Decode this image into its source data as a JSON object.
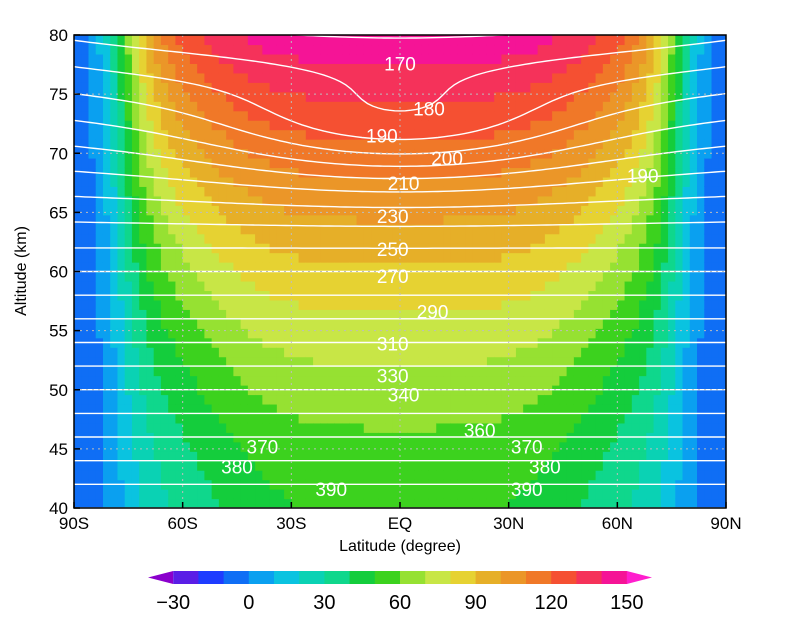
{
  "chart_data": {
    "type": "heatmap",
    "xlabel": "Latitude (degree)",
    "ylabel": "Altitude (km)",
    "xlim": [
      -90,
      90
    ],
    "ylim": [
      40,
      80
    ],
    "x_ticks": [
      {
        "value": -90,
        "label": "90S"
      },
      {
        "value": -60,
        "label": "60S"
      },
      {
        "value": -30,
        "label": "30S"
      },
      {
        "value": 0,
        "label": "EQ"
      },
      {
        "value": 30,
        "label": "30N"
      },
      {
        "value": 60,
        "label": "60N"
      },
      {
        "value": 90,
        "label": "90N"
      }
    ],
    "y_ticks": [
      {
        "value": 40,
        "label": "40"
      },
      {
        "value": 45,
        "label": "45"
      },
      {
        "value": 50,
        "label": "50"
      },
      {
        "value": 55,
        "label": "55"
      },
      {
        "value": 60,
        "label": "60"
      },
      {
        "value": 65,
        "label": "65"
      },
      {
        "value": 70,
        "label": "70"
      },
      {
        "value": 75,
        "label": "75"
      },
      {
        "value": 80,
        "label": "80"
      }
    ],
    "grid": true,
    "colorbar": {
      "levels": [
        -40,
        -30,
        -20,
        -10,
        0,
        10,
        20,
        30,
        40,
        50,
        60,
        70,
        80,
        90,
        100,
        110,
        120,
        130,
        140,
        150,
        160
      ],
      "colors": [
        "#8a00cc",
        "#5a1ee6",
        "#1e3cff",
        "#0f6ef5",
        "#0aa0f0",
        "#0ac3e0",
        "#0ad2b4",
        "#0fd78c",
        "#14cd3c",
        "#3cd21e",
        "#96e132",
        "#c8e646",
        "#e6d232",
        "#e6af28",
        "#eb9628",
        "#f07828",
        "#f55032",
        "#f5325a",
        "#f51496",
        "#ff1ecd"
      ],
      "tick_labels": [
        {
          "value": -30,
          "label": "−30"
        },
        {
          "value": 0,
          "label": "0"
        },
        {
          "value": 30,
          "label": "30"
        },
        {
          "value": 60,
          "label": "60"
        },
        {
          "value": 90,
          "label": "90"
        },
        {
          "value": 120,
          "label": "120"
        },
        {
          "value": 150,
          "label": "150"
        }
      ]
    },
    "contour_labels": [
      {
        "text": "170",
        "lat": 0,
        "alt": 77.6
      },
      {
        "text": "180",
        "lat": 8,
        "alt": 73.8
      },
      {
        "text": "190",
        "lat": -5,
        "alt": 71.5
      },
      {
        "text": "200",
        "lat": 13,
        "alt": 69.6
      },
      {
        "text": "190",
        "lat": 67,
        "alt": 68.1
      },
      {
        "text": "210",
        "lat": 1,
        "alt": 67.5
      },
      {
        "text": "230",
        "lat": -2,
        "alt": 64.7
      },
      {
        "text": "250",
        "lat": -2,
        "alt": 61.9
      },
      {
        "text": "270",
        "lat": -2,
        "alt": 59.6
      },
      {
        "text": "290",
        "lat": 9,
        "alt": 56.6
      },
      {
        "text": "310",
        "lat": -2,
        "alt": 53.9
      },
      {
        "text": "330",
        "lat": -2,
        "alt": 51.2
      },
      {
        "text": "340",
        "lat": 1,
        "alt": 49.6
      },
      {
        "text": "360",
        "lat": 22,
        "alt": 46.6
      },
      {
        "text": "370",
        "lat": -38,
        "alt": 45.2
      },
      {
        "text": "370",
        "lat": 35,
        "alt": 45.2
      },
      {
        "text": "380",
        "lat": -45,
        "alt": 43.5
      },
      {
        "text": "380",
        "lat": 40,
        "alt": 43.5
      },
      {
        "text": "390",
        "lat": -19,
        "alt": 41.6
      },
      {
        "text": "390",
        "lat": 35,
        "alt": 41.6
      }
    ]
  }
}
